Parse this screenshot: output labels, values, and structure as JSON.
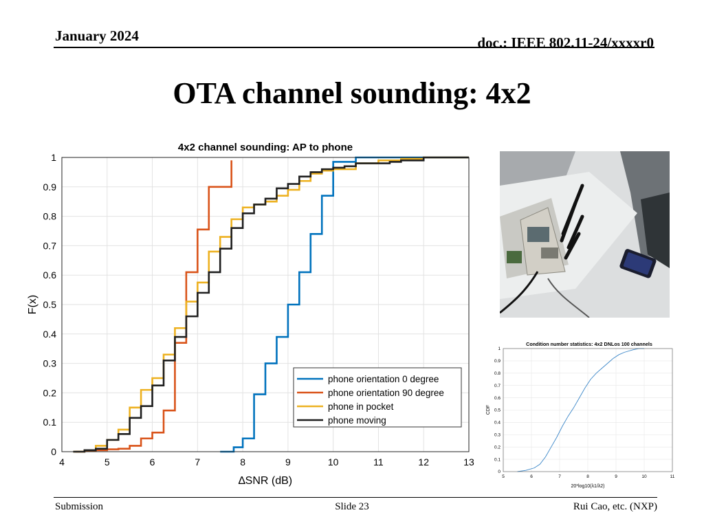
{
  "header": {
    "date": "January 2024",
    "doc": "doc.: IEEE 802.11-24/xxxxr0"
  },
  "slide_title": "OTA channel sounding: 4x2",
  "footer": {
    "left": "Submission",
    "center": "Slide 23",
    "right": "Rui Cao, etc. (NXP)"
  },
  "photo": {
    "description_icon": "ap-board-and-phone-photo"
  },
  "chart_data": [
    {
      "type": "line",
      "step": true,
      "title": "4x2 channel sounding: AP to phone",
      "xlabel": "∆SNR (dB)",
      "ylabel": "F(x)",
      "xlim": [
        4,
        13
      ],
      "ylim": [
        0,
        1
      ],
      "xticks": [
        4,
        5,
        6,
        7,
        8,
        9,
        10,
        11,
        12,
        13
      ],
      "yticks": [
        0,
        0.1,
        0.2,
        0.3,
        0.4,
        0.5,
        0.6,
        0.7,
        0.8,
        0.9,
        1
      ],
      "ytick_labels": [
        "0",
        "0.1",
        "0.2",
        "0.3",
        "0.4",
        "0.5",
        "0.6",
        "0.7",
        "0.8",
        "0.9",
        "1"
      ],
      "grid": true,
      "legend_position": "lower-right",
      "series": [
        {
          "name": "phone orientation 0 degree",
          "color": "#0072BD",
          "x": [
            7.5,
            7.8,
            8.0,
            8.25,
            8.5,
            8.75,
            9.0,
            9.25,
            9.5,
            9.75,
            10.0,
            10.5,
            13.0
          ],
          "y": [
            0.0,
            0.015,
            0.045,
            0.195,
            0.3,
            0.39,
            0.5,
            0.61,
            0.74,
            0.87,
            0.985,
            1.0,
            1.0
          ]
        },
        {
          "name": "phone orientation 90 degree",
          "color": "#D95319",
          "x": [
            4.3,
            4.5,
            4.75,
            5.0,
            5.25,
            5.5,
            5.75,
            6.0,
            6.25,
            6.5,
            6.75,
            7.0,
            7.25,
            7.75
          ],
          "y": [
            0.0,
            0.003,
            0.005,
            0.008,
            0.01,
            0.02,
            0.045,
            0.065,
            0.14,
            0.37,
            0.61,
            0.755,
            0.9,
            0.99
          ]
        },
        {
          "name": "phone in pocket",
          "color": "#EDB120",
          "x": [
            4.25,
            4.5,
            4.75,
            5.0,
            5.25,
            5.5,
            5.75,
            6.0,
            6.25,
            6.5,
            6.75,
            7.0,
            7.25,
            7.5,
            7.75,
            8.0,
            8.25,
            8.5,
            8.75,
            9.0,
            9.25,
            9.5,
            9.75,
            10.0,
            10.5,
            11.0,
            11.5,
            12.0,
            13.0
          ],
          "y": [
            0.0,
            0.005,
            0.02,
            0.04,
            0.075,
            0.15,
            0.21,
            0.25,
            0.33,
            0.42,
            0.51,
            0.575,
            0.68,
            0.73,
            0.79,
            0.83,
            0.84,
            0.85,
            0.87,
            0.89,
            0.92,
            0.945,
            0.955,
            0.96,
            0.98,
            0.99,
            0.995,
            1.0,
            1.0
          ]
        },
        {
          "name": "phone moving",
          "color": "#1f1f1f",
          "x": [
            4.25,
            4.5,
            4.75,
            5.0,
            5.25,
            5.5,
            5.75,
            6.0,
            6.25,
            6.5,
            6.75,
            7.0,
            7.25,
            7.5,
            7.75,
            8.0,
            8.25,
            8.5,
            8.75,
            9.0,
            9.25,
            9.5,
            9.75,
            10.0,
            10.25,
            10.5,
            11.0,
            11.25,
            11.5,
            12.0,
            13.0
          ],
          "y": [
            0.0,
            0.005,
            0.01,
            0.04,
            0.06,
            0.115,
            0.155,
            0.225,
            0.31,
            0.39,
            0.46,
            0.54,
            0.61,
            0.69,
            0.76,
            0.81,
            0.84,
            0.86,
            0.895,
            0.91,
            0.935,
            0.95,
            0.96,
            0.965,
            0.97,
            0.98,
            0.98,
            0.985,
            0.99,
            1.0,
            1.0
          ]
        }
      ]
    },
    {
      "type": "line",
      "title": "Condition number statistics: 4x2 DNLos 100 channels",
      "xlabel": "20*log10(λ1/λ2)",
      "ylabel": "CDF",
      "xlim": [
        5,
        11
      ],
      "ylim": [
        0,
        1
      ],
      "xticks": [
        5,
        6,
        7,
        8,
        9,
        10,
        11
      ],
      "yticks": [
        0,
        0.1,
        0.2,
        0.3,
        0.4,
        0.5,
        0.6,
        0.7,
        0.8,
        0.9,
        1
      ],
      "grid": true,
      "series": [
        {
          "color": "#3a86c8",
          "x": [
            5.5,
            5.8,
            6.1,
            6.3,
            6.5,
            6.7,
            6.9,
            7.1,
            7.3,
            7.5,
            7.7,
            7.9,
            8.1,
            8.3,
            8.5,
            8.7,
            8.9,
            9.1,
            9.3,
            9.6,
            9.8,
            10.0
          ],
          "y": [
            0.0,
            0.01,
            0.03,
            0.06,
            0.12,
            0.2,
            0.28,
            0.37,
            0.45,
            0.52,
            0.6,
            0.68,
            0.75,
            0.8,
            0.84,
            0.88,
            0.92,
            0.95,
            0.97,
            0.99,
            1.0,
            1.0
          ]
        }
      ]
    }
  ]
}
